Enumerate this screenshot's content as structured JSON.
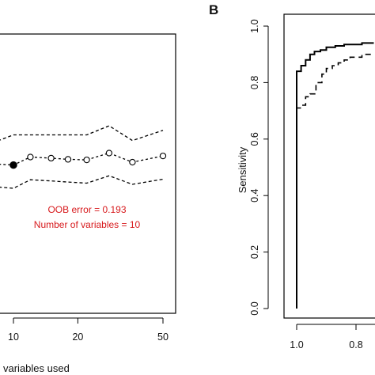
{
  "figure": {
    "panel_b_label": "B"
  },
  "chart_data": [
    {
      "type": "line",
      "panel": "A",
      "xlabel": "variables used",
      "x_ticks": [
        10,
        20,
        50
      ],
      "x_tick_labels": [
        "10",
        "20",
        "50"
      ],
      "series": [
        {
          "style": "dashed-upper",
          "x": [
            6,
            8,
            10,
            12,
            15,
            18,
            22,
            28,
            36,
            50
          ],
          "y": [
            0.245,
            0.232,
            0.246,
            0.246,
            0.246,
            0.246,
            0.246,
            0.262,
            0.236,
            0.254
          ]
        },
        {
          "style": "points-line",
          "x": [
            6,
            8,
            10,
            12,
            15,
            18,
            22,
            28,
            36,
            50
          ],
          "y": [
            0.205,
            0.195,
            0.193,
            0.207,
            0.205,
            0.203,
            0.202,
            0.214,
            0.198,
            0.209
          ]
        },
        {
          "style": "dashed-lower",
          "x": [
            6,
            8,
            10,
            12,
            15,
            18,
            22,
            28,
            36,
            50
          ],
          "y": [
            0.165,
            0.155,
            0.152,
            0.167,
            0.165,
            0.163,
            0.161,
            0.174,
            0.159,
            0.168
          ]
        }
      ],
      "selected_point": {
        "x": 10,
        "y": 0.193
      },
      "annotation": {
        "line1": "OOB error = 0.193",
        "line2": "Number of variables = 10",
        "color": "#d7191c"
      }
    },
    {
      "type": "line",
      "panel": "B",
      "ylabel": "Sensitivity",
      "y_ticks": [
        0.0,
        0.2,
        0.4,
        0.6,
        0.8,
        1.0
      ],
      "y_tick_labels": [
        "0.0",
        "0.2",
        "0.4",
        "0.6",
        "0.8",
        "1.0"
      ],
      "x_ticks": [
        1.0,
        0.8
      ],
      "x_tick_labels": [
        "1.0",
        "0.8"
      ],
      "x_reversed": true,
      "series": [
        {
          "style": "solid",
          "x": [
            1.0,
            1.0,
            0.985,
            0.985,
            0.97,
            0.97,
            0.955,
            0.955,
            0.94,
            0.94,
            0.92,
            0.92,
            0.9,
            0.9,
            0.87,
            0.87,
            0.84,
            0.84,
            0.78,
            0.78,
            0.74
          ],
          "y": [
            0.0,
            0.84,
            0.84,
            0.86,
            0.86,
            0.88,
            0.88,
            0.9,
            0.9,
            0.91,
            0.91,
            0.915,
            0.915,
            0.925,
            0.925,
            0.93,
            0.93,
            0.935,
            0.935,
            0.94,
            0.94
          ]
        },
        {
          "style": "dashed",
          "x": [
            1.0,
            1.0,
            0.985,
            0.985,
            0.97,
            0.97,
            0.955,
            0.955,
            0.935,
            0.935,
            0.915,
            0.915,
            0.9,
            0.9,
            0.88,
            0.88,
            0.86,
            0.86,
            0.84,
            0.84,
            0.82,
            0.82,
            0.78,
            0.78,
            0.74
          ],
          "y": [
            0.0,
            0.71,
            0.71,
            0.72,
            0.72,
            0.75,
            0.75,
            0.76,
            0.76,
            0.8,
            0.8,
            0.83,
            0.83,
            0.85,
            0.85,
            0.86,
            0.86,
            0.87,
            0.87,
            0.88,
            0.88,
            0.89,
            0.89,
            0.9,
            0.9
          ]
        }
      ]
    }
  ]
}
